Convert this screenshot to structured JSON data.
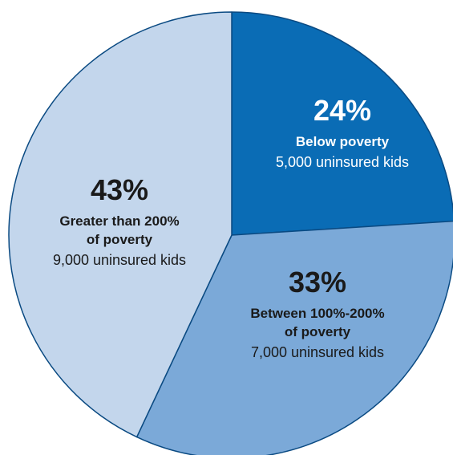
{
  "chart_data": {
    "type": "pie",
    "slices": [
      {
        "value": 24,
        "percent_label": "24%",
        "category_lines": [
          "Below poverty"
        ],
        "count_label": "5,000 uninsured kids",
        "color": "#0a6cb5",
        "text_color": "#ffffff"
      },
      {
        "value": 33,
        "percent_label": "33%",
        "category_lines": [
          "Between 100%-200%",
          "of poverty"
        ],
        "count_label": "7,000 uninsured kids",
        "color": "#7ba9d8",
        "text_color": "#1a1a1a"
      },
      {
        "value": 43,
        "percent_label": "43%",
        "category_lines": [
          "Greater than 200%",
          "of poverty"
        ],
        "count_label": "9,000 uninsured kids",
        "color": "#c3d6ec",
        "text_color": "#1a1a1a"
      }
    ],
    "border_color": "#0a4a82"
  }
}
